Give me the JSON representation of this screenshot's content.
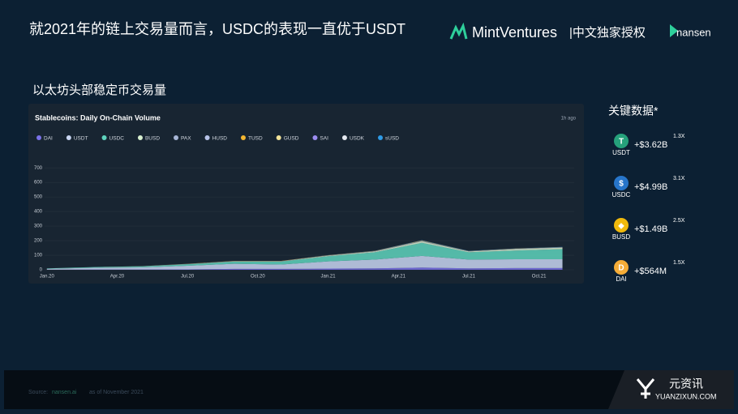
{
  "title": "就2021年的链上交易量而言，USDC的表现一直优于USDT",
  "logos": {
    "mint": "MintVentures",
    "license": "|中文独家授权",
    "nansen": "nansen"
  },
  "section_title": "以太坊头部稳定币交易量",
  "chart_data": {
    "type": "stacked-area",
    "title": "Stablecoins: Daily On-Chain Volume",
    "updated": "1h ago",
    "x": [
      0,
      2,
      4,
      6,
      8,
      10,
      12,
      14,
      16,
      18,
      20,
      22
    ],
    "xlim": [
      -0.2,
      22.5
    ],
    "xticks": [
      {
        "value": 0,
        "label": "Jan.20"
      },
      {
        "value": 3,
        "label": "Apr.20"
      },
      {
        "value": 6,
        "label": "Jul.20"
      },
      {
        "value": 9,
        "label": "Oct.20"
      },
      {
        "value": 12,
        "label": "Jan.21"
      },
      {
        "value": 15,
        "label": "Apr.21"
      },
      {
        "value": 18,
        "label": "Jul.21"
      },
      {
        "value": 21,
        "label": "Oct.21"
      }
    ],
    "ylim": [
      0,
      740
    ],
    "yticks": [
      0,
      100,
      200,
      300,
      400,
      500,
      600,
      700
    ],
    "grid": true,
    "series": [
      {
        "name": "DAI",
        "color": "#7b72e9",
        "values": [
          1,
          2,
          2,
          3,
          6,
          6,
          8,
          10,
          15,
          10,
          12,
          12
        ]
      },
      {
        "name": "USDT",
        "color": "#c9d6f2",
        "values": [
          6,
          12,
          15,
          25,
          35,
          30,
          50,
          60,
          80,
          60,
          60,
          60
        ]
      },
      {
        "name": "USDC",
        "color": "#5fd3bd",
        "values": [
          3,
          5,
          6,
          10,
          15,
          20,
          35,
          50,
          90,
          50,
          60,
          70
        ]
      },
      {
        "name": "BUSD",
        "color": "#d8f0d0",
        "values": [
          0,
          0,
          1,
          1,
          2,
          2,
          4,
          6,
          10,
          6,
          10,
          10
        ]
      },
      {
        "name": "PAX",
        "color": "#a7b6d6",
        "values": [
          0,
          0,
          0,
          1,
          1,
          1,
          1,
          2,
          2,
          1,
          2,
          2
        ]
      },
      {
        "name": "HUSD",
        "color": "#b7c3e8",
        "values": [
          0,
          0,
          0,
          0,
          1,
          1,
          1,
          1,
          2,
          1,
          1,
          1
        ]
      },
      {
        "name": "TUSD",
        "color": "#f5b731",
        "values": [
          0,
          0,
          0,
          1,
          1,
          1,
          1,
          1,
          2,
          1,
          1,
          1
        ]
      },
      {
        "name": "GUSD",
        "color": "#f3e49a",
        "values": [
          0,
          0,
          0,
          0,
          0,
          0,
          0,
          0,
          1,
          0,
          0,
          0
        ]
      },
      {
        "name": "SAI",
        "color": "#9b8cf0",
        "values": [
          0,
          0,
          0,
          0,
          0,
          0,
          0,
          0,
          0,
          0,
          0,
          0
        ]
      },
      {
        "name": "USDK",
        "color": "#e4e8ef",
        "values": [
          0,
          0,
          0,
          0,
          0,
          0,
          0,
          0,
          0,
          0,
          0,
          0
        ]
      },
      {
        "name": "sUSD",
        "color": "#2f9be6",
        "values": [
          0,
          0,
          0,
          0,
          0,
          0,
          1,
          1,
          1,
          1,
          1,
          1
        ]
      }
    ]
  },
  "key_data": {
    "title": "关键数据*",
    "items": [
      {
        "label": "USDT",
        "value": "+$3.62B",
        "multiple": "1.3X",
        "color": "#26a17b",
        "symbol": "T"
      },
      {
        "label": "USDC",
        "value": "+$4.99B",
        "multiple": "3.1X",
        "color": "#2775ca",
        "symbol": "$"
      },
      {
        "label": "BUSD",
        "value": "+$1.49B",
        "multiple": "2.5X",
        "color": "#f0b90b",
        "symbol": "◆"
      },
      {
        "label": "DAI",
        "value": "+$564M",
        "multiple": "1.5X",
        "color": "#f5ac37",
        "symbol": "D"
      }
    ]
  },
  "source": {
    "prefix": "Source:",
    "link": "nansen.ai",
    "suffix": "as of November 2021"
  },
  "watermark": {
    "name": "元资讯",
    "url": "YUANZIXUN.COM"
  }
}
